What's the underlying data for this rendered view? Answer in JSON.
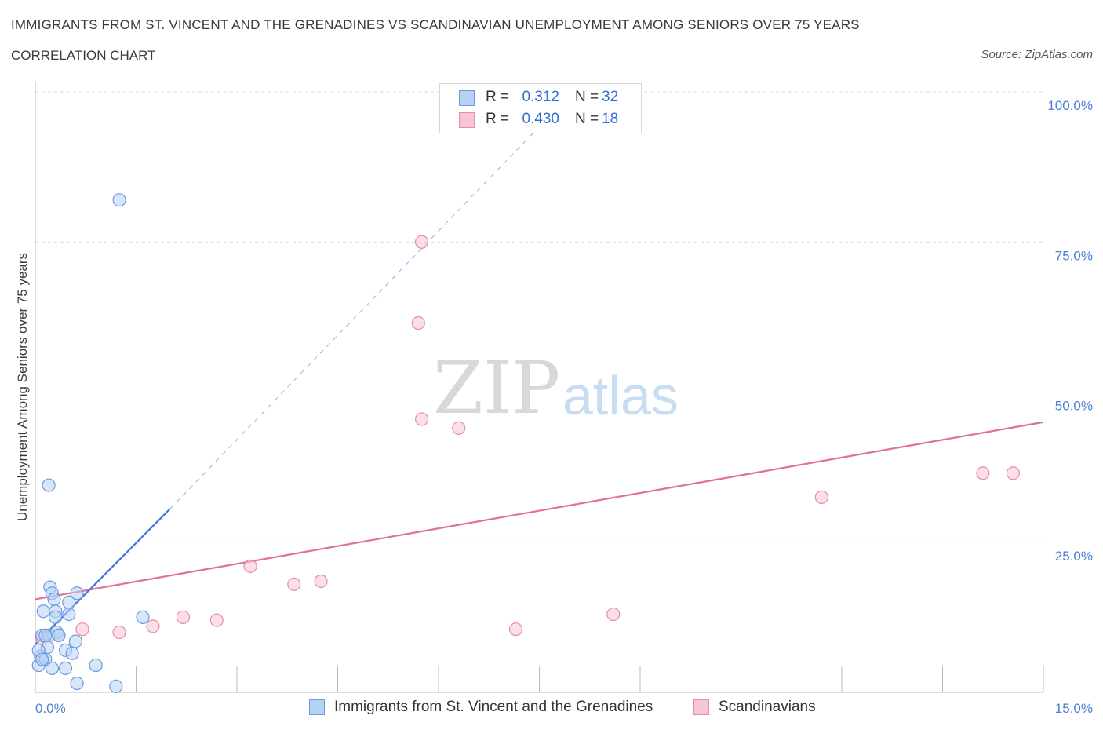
{
  "header": {
    "title": "IMMIGRANTS FROM ST. VINCENT AND THE GRENADINES VS SCANDINAVIAN UNEMPLOYMENT AMONG SENIORS OVER 75 YEARS",
    "subtitle": "CORRELATION CHART",
    "source": "Source: ZipAtlas.com"
  },
  "watermark": {
    "zip": "ZIP",
    "atlas": "atlas"
  },
  "legend": {
    "series": [
      {
        "r_label": "R =",
        "r_value": "0.312",
        "n_label": "N =",
        "n_value": "32"
      },
      {
        "r_label": "R =",
        "r_value": "0.430",
        "n_label": "N =",
        "n_value": "18"
      }
    ]
  },
  "bottom_legend": {
    "series_a": "Immigrants from St. Vincent and the Grenadines",
    "series_b": "Scandinavians"
  },
  "colors": {
    "blue_fill": "#b7d1f4",
    "blue_stroke": "#6b9be0",
    "blue_line": "#3c78d8",
    "pink_fill": "#f8c5d4",
    "pink_stroke": "#e88aa8",
    "pink_line": "#e0709a",
    "grid": "#dcdcdc",
    "tick_text": "#4a7fd4"
  },
  "chart_data": {
    "type": "scatter",
    "title": "IMMIGRANTS FROM ST. VINCENT AND THE GRENADINES VS SCANDINAVIAN UNEMPLOYMENT AMONG SENIORS OVER 75 YEARS",
    "xlabel": "",
    "ylabel": "Unemployment Among Seniors over 75 years",
    "xlim": [
      0,
      15
    ],
    "ylim": [
      0,
      100
    ],
    "x_tick_labels": [
      "0.0%",
      "15.0%"
    ],
    "y_ticks": [
      25,
      50,
      75,
      100
    ],
    "y_tick_labels": [
      "25.0%",
      "50.0%",
      "75.0%",
      "100.0%"
    ],
    "grid": true,
    "series": [
      {
        "name": "Immigrants from St. Vincent and the Grenadines",
        "color": "blue",
        "points": [
          [
            0.05,
            4.5
          ],
          [
            0.08,
            6
          ],
          [
            0.1,
            9.5
          ],
          [
            0.12,
            13.5
          ],
          [
            0.15,
            5.5
          ],
          [
            0.18,
            7.5
          ],
          [
            0.2,
            9.5
          ],
          [
            0.22,
            17.5
          ],
          [
            0.25,
            16.5
          ],
          [
            0.2,
            34.5
          ],
          [
            0.25,
            4
          ],
          [
            0.28,
            15.5
          ],
          [
            0.3,
            13.5
          ],
          [
            0.3,
            12.5
          ],
          [
            0.32,
            10
          ],
          [
            0.35,
            9.5
          ],
          [
            0.35,
            9.5
          ],
          [
            0.45,
            7
          ],
          [
            0.45,
            4
          ],
          [
            0.5,
            15
          ],
          [
            0.5,
            13
          ],
          [
            0.55,
            6.5
          ],
          [
            0.6,
            8.5
          ],
          [
            0.62,
            1.5
          ],
          [
            0.62,
            16.5
          ],
          [
            0.9,
            4.5
          ],
          [
            1.2,
            1
          ],
          [
            1.25,
            82
          ],
          [
            1.6,
            12.5
          ],
          [
            0.05,
            7
          ],
          [
            0.15,
            9.5
          ],
          [
            0.1,
            5.5
          ]
        ],
        "trend": {
          "x": [
            0,
            2.0
          ],
          "y": [
            8,
            30.5
          ],
          "dashed_extension_to": [
            8.0,
            100
          ]
        }
      },
      {
        "name": "Scandinavians",
        "color": "pink",
        "points": [
          [
            0.1,
            9
          ],
          [
            0.7,
            10.5
          ],
          [
            1.25,
            10
          ],
          [
            1.75,
            11
          ],
          [
            2.2,
            12.5
          ],
          [
            2.7,
            12
          ],
          [
            3.2,
            21
          ],
          [
            3.85,
            18
          ],
          [
            4.25,
            18.5
          ],
          [
            5.7,
            61.5
          ],
          [
            5.75,
            75
          ],
          [
            5.75,
            45.5
          ],
          [
            6.3,
            44
          ],
          [
            7.15,
            10.5
          ],
          [
            8.6,
            13
          ],
          [
            11.7,
            32.5
          ],
          [
            14.1,
            36.5
          ],
          [
            14.55,
            36.5
          ]
        ],
        "trend": {
          "x": [
            0,
            15
          ],
          "y": [
            15.5,
            45
          ]
        }
      }
    ]
  }
}
